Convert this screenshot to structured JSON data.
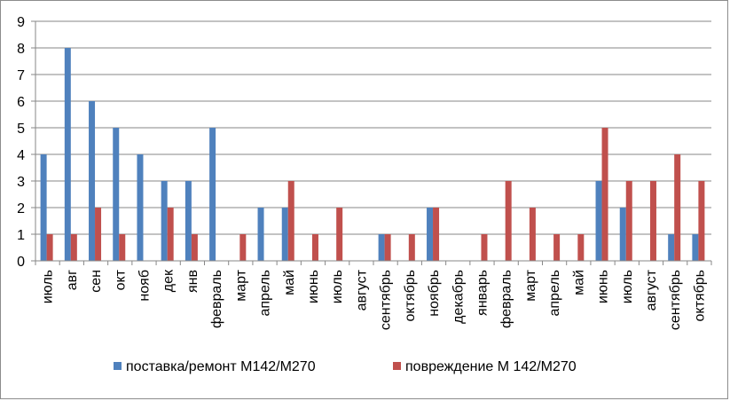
{
  "chart_data": {
    "type": "bar",
    "title": "",
    "xlabel": "",
    "ylabel": "",
    "ylim": [
      0,
      9
    ],
    "yticks": [
      0,
      1,
      2,
      3,
      4,
      5,
      6,
      7,
      8,
      9
    ],
    "grid": "horizontal",
    "legend_position": "bottom",
    "categories": [
      "июль",
      "авг",
      "сен",
      "окт",
      "нояб",
      "дек",
      "янв",
      "февраль",
      "март",
      "апрель",
      "май",
      "июнь",
      "июль",
      "август",
      "сентябрь",
      "октябрь",
      "ноябрь",
      "декабрь",
      "январь",
      "февраль",
      "март",
      "апрель",
      "май",
      "июнь",
      "июль",
      "август",
      "сентябрь",
      "октябрь"
    ],
    "series": [
      {
        "name": "поставка/ремонт М142/М270",
        "color": "#4f81bd",
        "values": [
          4,
          8,
          6,
          5,
          4,
          3,
          3,
          5,
          0,
          2,
          2,
          0,
          0,
          0,
          1,
          0,
          2,
          0,
          0,
          0,
          0,
          0,
          0,
          3,
          2,
          0,
          1,
          1
        ]
      },
      {
        "name": "повреждение М 142/М270",
        "color": "#c0504d",
        "values": [
          1,
          1,
          2,
          1,
          0,
          2,
          1,
          0,
          1,
          0,
          3,
          1,
          2,
          0,
          1,
          1,
          2,
          0,
          1,
          3,
          2,
          1,
          1,
          5,
          3,
          3,
          4,
          3
        ]
      }
    ]
  }
}
